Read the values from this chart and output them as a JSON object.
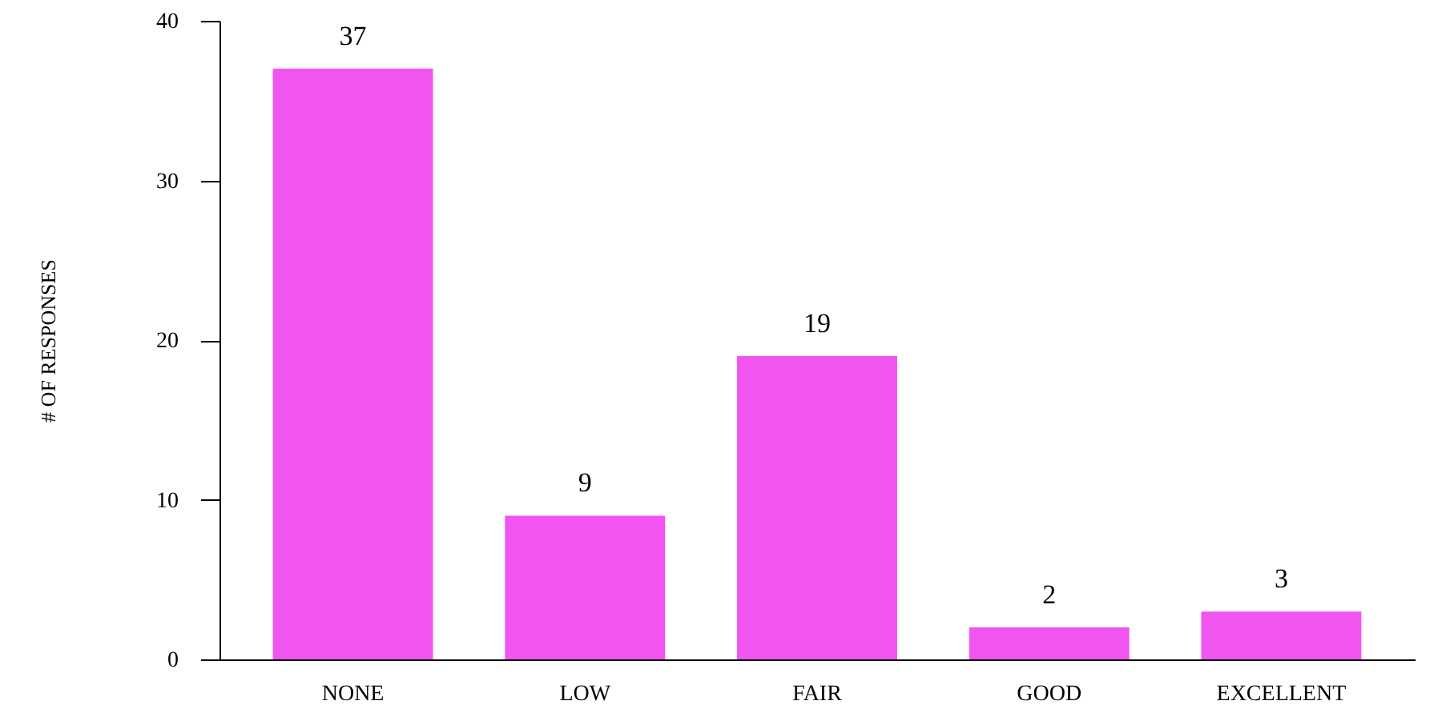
{
  "chart_data": {
    "type": "bar",
    "ylabel": "# OF RESPONSES",
    "categories": [
      "NONE",
      "LOW",
      "FAIR",
      "GOOD",
      "EXCELLENT"
    ],
    "values": [
      37,
      9,
      19,
      2,
      3
    ],
    "color": "#f155f0",
    "ylim": [
      0,
      40
    ],
    "yticks": [
      0,
      10,
      20,
      30,
      40
    ],
    "grid": false,
    "data_labels": true
  }
}
